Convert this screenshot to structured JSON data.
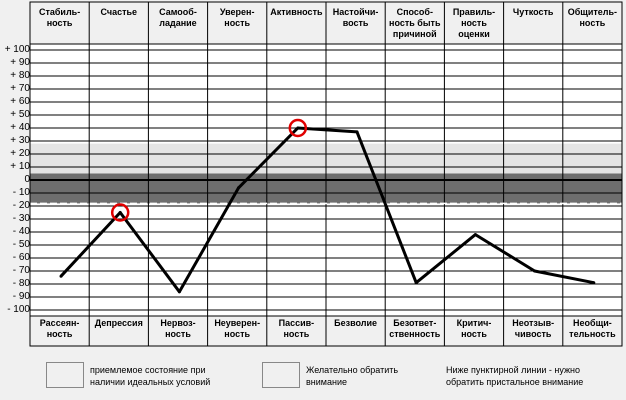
{
  "chart_data": {
    "type": "line",
    "top_labels": [
      "Стабиль-\nность",
      "Счастье",
      "Самооб-\nладание",
      "Уверен-\nность",
      "Активность",
      "Настойчи-\nвость",
      "Способ-ность быть\nпричиной",
      "Правиль-\nность\nоценки",
      "Чуткость",
      "Общитель-\nность"
    ],
    "bottom_labels": [
      "Рассеян-\nность",
      "Депрессия",
      "Нервоз-\nность",
      "Неуверен-\nность",
      "Пассив-\nность",
      "Безволие",
      "Безответ-\nственность",
      "Критич-\nность",
      "Неотзыв-\nчивость",
      "Необщи-\nтельность"
    ],
    "y_ticks": [
      "+ 100",
      "+ 90",
      "+ 80",
      "+ 70",
      "+ 60",
      "+ 50",
      "+ 40",
      "+ 30",
      "+ 20",
      "+ 10",
      "0",
      "- 10",
      "- 20",
      "- 30",
      "- 40",
      "- 50",
      "- 60",
      "- 70",
      "- 80",
      "- 90",
      "- 100"
    ],
    "ylim": [
      -100,
      100
    ],
    "values": [
      -74,
      -25,
      -86,
      -6,
      40,
      37,
      -79,
      -42,
      -70,
      -79
    ],
    "circled_indices": [
      1,
      4
    ],
    "bands": [
      {
        "from": 5,
        "to": 28,
        "color": "#d9d9d9"
      },
      {
        "from": -18,
        "to": 5,
        "color": "#8c8c8c"
      }
    ],
    "dashed_line_at": -18,
    "colors": {
      "line": "#000000",
      "circle": "#e00000",
      "grid": "#000000",
      "background": "#ffffff"
    }
  },
  "legend": [
    {
      "text": "приемлемое состояние при\nналичии идеальных условий",
      "color": "#e4e4e4"
    },
    {
      "text": "Желательно обратить\nвнимание",
      "color": "#6e6e6e"
    },
    {
      "text": "Ниже пунктирной линии - нужно\nобратить пристальное внимание"
    }
  ]
}
